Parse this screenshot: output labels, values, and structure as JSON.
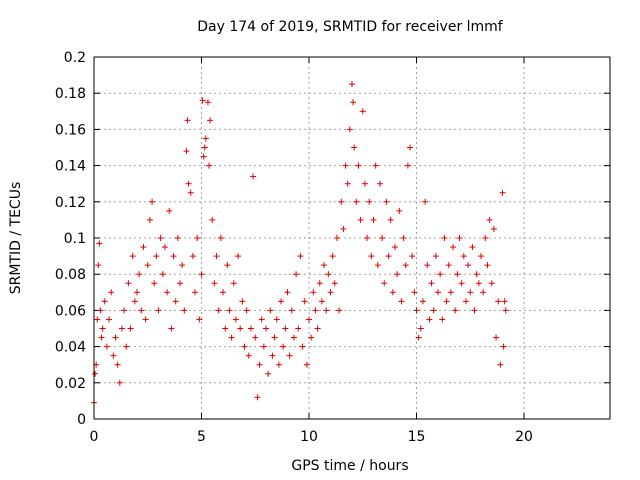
{
  "chart_data": {
    "type": "scatter",
    "title": "Day 174 of 2019, SRMTID for receiver lmmf",
    "xlabel": "GPS time / hours",
    "ylabel": "SRMTID / TECUs",
    "xlim": [
      0,
      24
    ],
    "ylim": [
      0,
      0.2
    ],
    "xticks": [
      0,
      5,
      10,
      15,
      20
    ],
    "xtick_labels": [
      "0",
      "5",
      "10",
      "15",
      "20"
    ],
    "yticks": [
      0,
      0.02,
      0.04,
      0.06,
      0.08,
      0.1,
      0.12,
      0.14,
      0.16,
      0.18,
      0.2
    ],
    "ytick_labels": [
      "0",
      "0.02",
      "0.04",
      "0.06",
      "0.08",
      "0.1",
      "0.12",
      "0.14",
      "0.16",
      "0.18",
      "0.2"
    ],
    "grid": true,
    "marker": "+",
    "color": "#e00000",
    "series": [
      {
        "name": "SRMTID",
        "points": [
          [
            0.0,
            0.009
          ],
          [
            0.05,
            0.025
          ],
          [
            0.1,
            0.03
          ],
          [
            0.15,
            0.055
          ],
          [
            0.2,
            0.085
          ],
          [
            0.25,
            0.097
          ],
          [
            0.3,
            0.06
          ],
          [
            0.35,
            0.045
          ],
          [
            0.4,
            0.05
          ],
          [
            0.5,
            0.065
          ],
          [
            0.6,
            0.04
          ],
          [
            0.7,
            0.055
          ],
          [
            0.8,
            0.07
          ],
          [
            0.9,
            0.035
          ],
          [
            1.0,
            0.045
          ],
          [
            1.1,
            0.03
          ],
          [
            1.2,
            0.02
          ],
          [
            1.3,
            0.05
          ],
          [
            1.4,
            0.06
          ],
          [
            1.5,
            0.04
          ],
          [
            1.6,
            0.075
          ],
          [
            1.7,
            0.05
          ],
          [
            1.8,
            0.09
          ],
          [
            1.9,
            0.065
          ],
          [
            2.0,
            0.07
          ],
          [
            2.1,
            0.08
          ],
          [
            2.2,
            0.06
          ],
          [
            2.3,
            0.095
          ],
          [
            2.4,
            0.055
          ],
          [
            2.5,
            0.085
          ],
          [
            2.6,
            0.11
          ],
          [
            2.7,
            0.12
          ],
          [
            2.8,
            0.075
          ],
          [
            2.9,
            0.09
          ],
          [
            3.0,
            0.06
          ],
          [
            3.1,
            0.1
          ],
          [
            3.2,
            0.08
          ],
          [
            3.3,
            0.095
          ],
          [
            3.4,
            0.07
          ],
          [
            3.5,
            0.115
          ],
          [
            3.6,
            0.05
          ],
          [
            3.7,
            0.09
          ],
          [
            3.8,
            0.065
          ],
          [
            3.9,
            0.1
          ],
          [
            4.0,
            0.075
          ],
          [
            4.1,
            0.085
          ],
          [
            4.2,
            0.06
          ],
          [
            4.3,
            0.148
          ],
          [
            4.35,
            0.165
          ],
          [
            4.4,
            0.13
          ],
          [
            4.5,
            0.125
          ],
          [
            4.6,
            0.09
          ],
          [
            4.7,
            0.07
          ],
          [
            4.8,
            0.1
          ],
          [
            4.9,
            0.055
          ],
          [
            5.0,
            0.08
          ],
          [
            5.05,
            0.176
          ],
          [
            5.1,
            0.145
          ],
          [
            5.15,
            0.15
          ],
          [
            5.2,
            0.155
          ],
          [
            5.3,
            0.175
          ],
          [
            5.35,
            0.14
          ],
          [
            5.4,
            0.165
          ],
          [
            5.5,
            0.11
          ],
          [
            5.6,
            0.075
          ],
          [
            5.7,
            0.09
          ],
          [
            5.8,
            0.06
          ],
          [
            5.9,
            0.1
          ],
          [
            6.0,
            0.07
          ],
          [
            6.1,
            0.05
          ],
          [
            6.2,
            0.085
          ],
          [
            6.3,
            0.06
          ],
          [
            6.4,
            0.045
          ],
          [
            6.5,
            0.075
          ],
          [
            6.6,
            0.055
          ],
          [
            6.7,
            0.09
          ],
          [
            6.8,
            0.05
          ],
          [
            6.9,
            0.065
          ],
          [
            7.0,
            0.04
          ],
          [
            7.1,
            0.06
          ],
          [
            7.2,
            0.035
          ],
          [
            7.3,
            0.05
          ],
          [
            7.4,
            0.134
          ],
          [
            7.5,
            0.045
          ],
          [
            7.6,
            0.012
          ],
          [
            7.7,
            0.03
          ],
          [
            7.8,
            0.055
          ],
          [
            7.9,
            0.04
          ],
          [
            8.0,
            0.05
          ],
          [
            8.1,
            0.025
          ],
          [
            8.2,
            0.06
          ],
          [
            8.3,
            0.035
          ],
          [
            8.4,
            0.045
          ],
          [
            8.5,
            0.055
          ],
          [
            8.6,
            0.03
          ],
          [
            8.7,
            0.065
          ],
          [
            8.8,
            0.04
          ],
          [
            8.9,
            0.05
          ],
          [
            9.0,
            0.07
          ],
          [
            9.1,
            0.035
          ],
          [
            9.2,
            0.06
          ],
          [
            9.3,
            0.045
          ],
          [
            9.4,
            0.08
          ],
          [
            9.5,
            0.05
          ],
          [
            9.6,
            0.09
          ],
          [
            9.7,
            0.04
          ],
          [
            9.8,
            0.065
          ],
          [
            9.9,
            0.03
          ],
          [
            10.0,
            0.055
          ],
          [
            10.1,
            0.045
          ],
          [
            10.2,
            0.07
          ],
          [
            10.3,
            0.06
          ],
          [
            10.4,
            0.05
          ],
          [
            10.5,
            0.075
          ],
          [
            10.6,
            0.065
          ],
          [
            10.7,
            0.085
          ],
          [
            10.8,
            0.06
          ],
          [
            10.9,
            0.08
          ],
          [
            11.0,
            0.07
          ],
          [
            11.1,
            0.09
          ],
          [
            11.2,
            0.075
          ],
          [
            11.3,
            0.1
          ],
          [
            11.4,
            0.06
          ],
          [
            11.5,
            0.12
          ],
          [
            11.6,
            0.105
          ],
          [
            11.7,
            0.14
          ],
          [
            11.8,
            0.13
          ],
          [
            11.9,
            0.16
          ],
          [
            12.0,
            0.185
          ],
          [
            12.05,
            0.175
          ],
          [
            12.1,
            0.15
          ],
          [
            12.2,
            0.12
          ],
          [
            12.3,
            0.14
          ],
          [
            12.4,
            0.11
          ],
          [
            12.5,
            0.17
          ],
          [
            12.6,
            0.13
          ],
          [
            12.7,
            0.1
          ],
          [
            12.8,
            0.12
          ],
          [
            12.9,
            0.09
          ],
          [
            13.0,
            0.11
          ],
          [
            13.1,
            0.14
          ],
          [
            13.2,
            0.085
          ],
          [
            13.3,
            0.13
          ],
          [
            13.4,
            0.1
          ],
          [
            13.5,
            0.075
          ],
          [
            13.6,
            0.12
          ],
          [
            13.7,
            0.09
          ],
          [
            13.8,
            0.11
          ],
          [
            13.9,
            0.07
          ],
          [
            14.0,
            0.095
          ],
          [
            14.1,
            0.08
          ],
          [
            14.2,
            0.115
          ],
          [
            14.3,
            0.065
          ],
          [
            14.4,
            0.1
          ],
          [
            14.5,
            0.085
          ],
          [
            14.6,
            0.14
          ],
          [
            14.7,
            0.15
          ],
          [
            14.8,
            0.09
          ],
          [
            14.9,
            0.07
          ],
          [
            15.0,
            0.06
          ],
          [
            15.1,
            0.045
          ],
          [
            15.2,
            0.05
          ],
          [
            15.3,
            0.065
          ],
          [
            15.4,
            0.12
          ],
          [
            15.5,
            0.085
          ],
          [
            15.6,
            0.055
          ],
          [
            15.7,
            0.075
          ],
          [
            15.8,
            0.06
          ],
          [
            15.9,
            0.09
          ],
          [
            16.0,
            0.07
          ],
          [
            16.1,
            0.08
          ],
          [
            16.2,
            0.055
          ],
          [
            16.3,
            0.1
          ],
          [
            16.4,
            0.065
          ],
          [
            16.5,
            0.085
          ],
          [
            16.6,
            0.07
          ],
          [
            16.7,
            0.095
          ],
          [
            16.8,
            0.06
          ],
          [
            16.9,
            0.08
          ],
          [
            17.0,
            0.1
          ],
          [
            17.1,
            0.075
          ],
          [
            17.2,
            0.09
          ],
          [
            17.3,
            0.065
          ],
          [
            17.4,
            0.085
          ],
          [
            17.5,
            0.07
          ],
          [
            17.6,
            0.095
          ],
          [
            17.7,
            0.06
          ],
          [
            17.8,
            0.08
          ],
          [
            17.9,
            0.075
          ],
          [
            18.0,
            0.09
          ],
          [
            18.1,
            0.07
          ],
          [
            18.2,
            0.1
          ],
          [
            18.3,
            0.085
          ],
          [
            18.4,
            0.11
          ],
          [
            18.5,
            0.075
          ],
          [
            18.6,
            0.105
          ],
          [
            18.7,
            0.045
          ],
          [
            18.8,
            0.065
          ],
          [
            18.9,
            0.03
          ],
          [
            19.0,
            0.125
          ],
          [
            19.05,
            0.04
          ],
          [
            19.1,
            0.065
          ],
          [
            19.15,
            0.06
          ]
        ]
      }
    ]
  }
}
